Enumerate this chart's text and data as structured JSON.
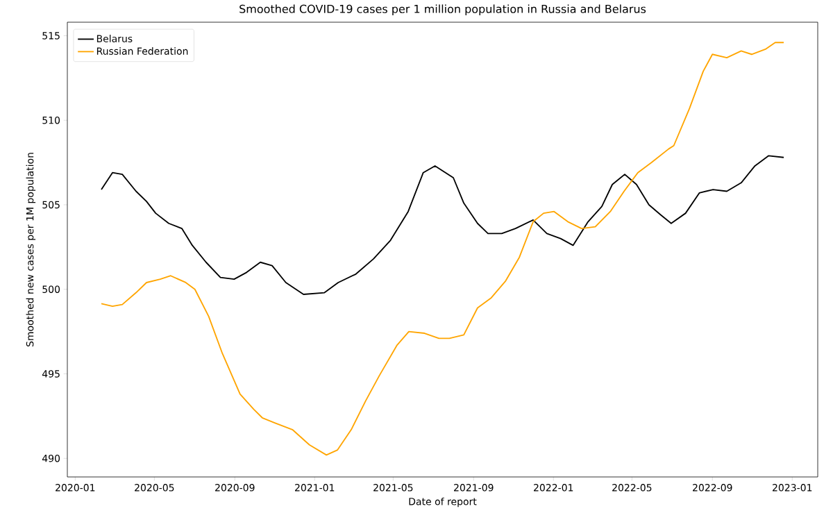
{
  "chart_data": {
    "type": "line",
    "title": "Smoothed COVID-19 cases per 1 million population in Russia and Belarus",
    "xlabel": "Date of report",
    "ylabel": "Smoothed new cases per 1M population",
    "xlim": [
      "2019-12-20",
      "2023-02-09"
    ],
    "ylim": [
      488.9,
      515.8
    ],
    "xticks": [
      "2020-01",
      "2020-05",
      "2020-09",
      "2021-01",
      "2021-05",
      "2021-09",
      "2022-01",
      "2022-05",
      "2022-09",
      "2023-01"
    ],
    "yticks": [
      490,
      495,
      500,
      505,
      510,
      515
    ],
    "legend": "top left",
    "series": [
      {
        "name": "Belarus",
        "color": "#000000",
        "x": [
          "2020-02-10",
          "2020-02-27",
          "2020-03-13",
          "2020-04-03",
          "2020-04-19",
          "2020-05-03",
          "2020-05-23",
          "2020-06-12",
          "2020-06-28",
          "2020-07-19",
          "2020-08-10",
          "2020-08-31",
          "2020-09-19",
          "2020-10-10",
          "2020-10-28",
          "2020-11-18",
          "2020-12-15",
          "2021-01-16",
          "2021-02-06",
          "2021-03-05",
          "2021-04-01",
          "2021-04-27",
          "2021-05-24",
          "2021-06-16",
          "2021-07-04",
          "2021-08-01",
          "2021-08-17",
          "2021-09-07",
          "2021-09-23",
          "2021-10-14",
          "2021-11-04",
          "2021-12-01",
          "2021-12-22",
          "2022-01-12",
          "2022-01-31",
          "2022-02-23",
          "2022-03-16",
          "2022-04-01",
          "2022-04-20",
          "2022-05-08",
          "2022-05-27",
          "2022-06-14",
          "2022-06-30",
          "2022-07-22",
          "2022-08-12",
          "2022-09-02",
          "2022-09-23",
          "2022-10-15",
          "2022-11-05",
          "2022-11-26",
          "2022-12-19"
        ],
        "values": [
          505.9,
          506.9,
          506.8,
          505.8,
          505.2,
          504.5,
          503.9,
          503.6,
          502.6,
          501.6,
          500.7,
          500.6,
          501.0,
          501.6,
          501.4,
          500.4,
          499.7,
          499.8,
          500.4,
          500.9,
          501.8,
          502.9,
          504.6,
          506.9,
          507.3,
          506.6,
          505.1,
          503.9,
          503.3,
          503.3,
          503.6,
          504.1,
          503.3,
          503.0,
          502.6,
          504.0,
          504.9,
          506.2,
          506.8,
          506.2,
          505.0,
          504.4,
          503.9,
          504.5,
          505.7,
          505.9,
          505.8,
          506.3,
          507.3,
          507.9,
          507.8
        ]
      },
      {
        "name": "Russian Federation",
        "color": "#ffa500",
        "x": [
          "2020-02-10",
          "2020-02-27",
          "2020-03-13",
          "2020-04-03",
          "2020-04-19",
          "2020-05-10",
          "2020-05-26",
          "2020-06-18",
          "2020-07-02",
          "2020-07-23",
          "2020-08-13",
          "2020-09-09",
          "2020-09-30",
          "2020-10-13",
          "2020-11-01",
          "2020-11-28",
          "2020-12-24",
          "2021-01-19",
          "2021-02-05",
          "2021-02-26",
          "2021-03-20",
          "2021-04-10",
          "2021-05-07",
          "2021-05-25",
          "2021-06-18",
          "2021-07-10",
          "2021-07-26",
          "2021-08-17",
          "2021-09-07",
          "2021-09-28",
          "2021-10-20",
          "2021-11-10",
          "2021-12-01",
          "2021-12-17",
          "2022-01-02",
          "2022-01-23",
          "2022-02-13",
          "2022-03-06",
          "2022-03-29",
          "2022-04-19",
          "2022-05-10",
          "2022-05-31",
          "2022-06-26",
          "2022-07-04",
          "2022-07-28",
          "2022-08-18",
          "2022-09-01",
          "2022-09-23",
          "2022-10-15",
          "2022-10-31",
          "2022-11-21",
          "2022-12-06",
          "2022-12-19"
        ],
        "values": [
          499.15,
          499.0,
          499.1,
          499.8,
          500.4,
          500.6,
          500.8,
          500.4,
          500.0,
          498.4,
          496.2,
          493.8,
          492.9,
          492.4,
          492.1,
          491.7,
          490.8,
          490.2,
          490.5,
          491.7,
          493.4,
          494.9,
          496.7,
          497.5,
          497.4,
          497.1,
          497.1,
          497.3,
          498.9,
          499.5,
          500.5,
          501.9,
          504.0,
          504.5,
          504.6,
          504.0,
          503.6,
          503.7,
          504.6,
          505.8,
          506.9,
          507.5,
          508.3,
          508.5,
          510.7,
          512.9,
          513.9,
          513.7,
          514.1,
          513.9,
          514.2,
          514.6,
          514.6
        ]
      }
    ]
  }
}
